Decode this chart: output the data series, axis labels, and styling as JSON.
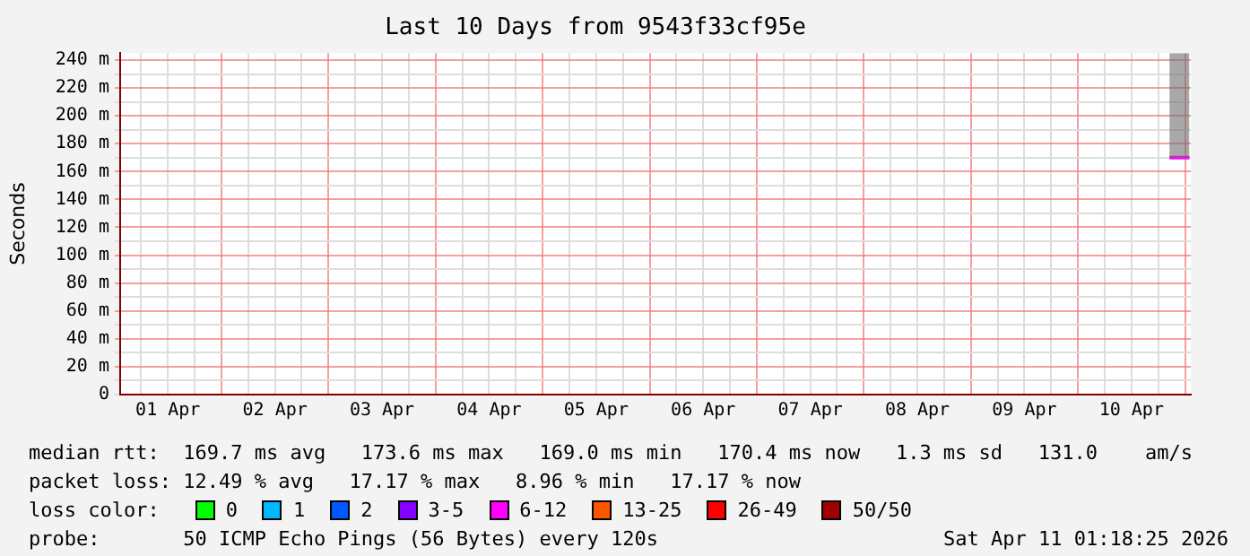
{
  "chart_data": {
    "type": "line",
    "title": "Last 10 Days from 9543f33cf95e",
    "ylabel": "Seconds",
    "x": [
      "2026-04-10T20:30",
      "2026-04-10T22:00",
      "2026-04-10T23:30",
      "2026-04-11T01:00"
    ],
    "series": [
      {
        "color": "#ff00ff",
        "values": [
          170,
          170,
          170,
          170
        ],
        "lower": [
          170,
          170,
          170,
          170
        ],
        "upper": [
          245,
          245,
          245,
          245
        ]
      }
    ],
    "xlim": [
      "2026-04-01T01:18",
      "2026-04-11T01:18"
    ],
    "xticks": [
      {
        "value": "2026-04-01T06:00",
        "label": null
      },
      {
        "value": "2026-04-01T12:00",
        "label": "01 Apr"
      },
      {
        "value": "2026-04-01T18:00",
        "label": null
      },
      {
        "value": "2026-04-02T00:00",
        "label": null
      },
      {
        "value": "2026-04-02T06:00",
        "label": null
      },
      {
        "value": "2026-04-02T12:00",
        "label": "02 Apr"
      },
      {
        "value": "2026-04-02T18:00",
        "label": null
      },
      {
        "value": "2026-04-03T00:00",
        "label": null
      },
      {
        "value": "2026-04-03T06:00",
        "label": null
      },
      {
        "value": "2026-04-03T12:00",
        "label": "03 Apr"
      },
      {
        "value": "2026-04-03T18:00",
        "label": null
      },
      {
        "value": "2026-04-04T00:00",
        "label": null
      },
      {
        "value": "2026-04-04T06:00",
        "label": null
      },
      {
        "value": "2026-04-04T12:00",
        "label": "04 Apr"
      },
      {
        "value": "2026-04-04T18:00",
        "label": null
      },
      {
        "value": "2026-04-05T00:00",
        "label": null
      },
      {
        "value": "2026-04-05T06:00",
        "label": null
      },
      {
        "value": "2026-04-05T12:00",
        "label": "05 Apr"
      },
      {
        "value": "2026-04-05T18:00",
        "label": null
      },
      {
        "value": "2026-04-06T00:00",
        "label": null
      },
      {
        "value": "2026-04-06T06:00",
        "label": null
      },
      {
        "value": "2026-04-06T12:00",
        "label": "06 Apr"
      },
      {
        "value": "2026-04-06T18:00",
        "label": null
      },
      {
        "value": "2026-04-07T00:00",
        "label": null
      },
      {
        "value": "2026-04-07T06:00",
        "label": null
      },
      {
        "value": "2026-04-07T12:00",
        "label": "07 Apr"
      },
      {
        "value": "2026-04-07T18:00",
        "label": null
      },
      {
        "value": "2026-04-08T00:00",
        "label": null
      },
      {
        "value": "2026-04-08T06:00",
        "label": null
      },
      {
        "value": "2026-04-08T12:00",
        "label": "08 Apr"
      },
      {
        "value": "2026-04-08T18:00",
        "label": null
      },
      {
        "value": "2026-04-09T00:00",
        "label": null
      },
      {
        "value": "2026-04-09T06:00",
        "label": null
      },
      {
        "value": "2026-04-09T12:00",
        "label": "09 Apr"
      },
      {
        "value": "2026-04-09T18:00",
        "label": null
      },
      {
        "value": "2026-04-10T00:00",
        "label": null
      },
      {
        "value": "2026-04-10T06:00",
        "label": null
      },
      {
        "value": "2026-04-10T12:00",
        "label": "10 Apr"
      },
      {
        "value": "2026-04-10T18:00",
        "label": null
      },
      {
        "value": "2026-04-11T00:00",
        "label": null
      }
    ],
    "ylim": [
      0,
      245
    ],
    "yticks": [
      0,
      {
        "value": 10,
        "label": null
      },
      {
        "value": 20,
        "label": "20 m"
      },
      {
        "value": 30,
        "label": null
      },
      {
        "value": 40,
        "label": "40 m"
      },
      {
        "value": 50,
        "label": null
      },
      {
        "value": 60,
        "label": "60 m"
      },
      {
        "value": 70,
        "label": null
      },
      {
        "value": 80,
        "label": "80 m"
      },
      {
        "value": 90,
        "label": null
      },
      {
        "value": 100,
        "label": "100 m"
      },
      {
        "value": 110,
        "label": null
      },
      {
        "value": 120,
        "label": "120 m"
      },
      {
        "value": 130,
        "label": null
      },
      {
        "value": 140,
        "label": "140 m"
      },
      {
        "value": 150,
        "label": null
      },
      {
        "value": 160,
        "label": "160 m"
      },
      {
        "value": 170,
        "label": null
      },
      {
        "value": 180,
        "label": "180 m"
      },
      {
        "value": 190,
        "label": null
      },
      {
        "value": 200,
        "label": "200 m"
      },
      {
        "value": 210,
        "label": null
      },
      {
        "value": 220,
        "label": "220 m"
      },
      {
        "value": 230,
        "label": null
      },
      {
        "value": 240,
        "label": "240 m"
      }
    ],
    "grid": true,
    "legend": false,
    "marker": "none",
    "line_style": "solid",
    "annotations": [
      "median rtt:  169.7 ms avg   173.6 ms max   169.0 ms min   170.4 ms now   1.3 ms sd   131.0    am/s",
      "packet loss: 12.49 % avg   17.17 % max   8.96 % min   17.17 % now",
      "loss color:",
      "0",
      "1",
      "2",
      "3-5",
      "6-12",
      "13-25",
      "26-49",
      "50/50",
      "probe:       50 ICMP Echo Pings (56 Bytes) every 120s",
      "Sat Apr 11 01:18:25 2026"
    ]
  }
}
